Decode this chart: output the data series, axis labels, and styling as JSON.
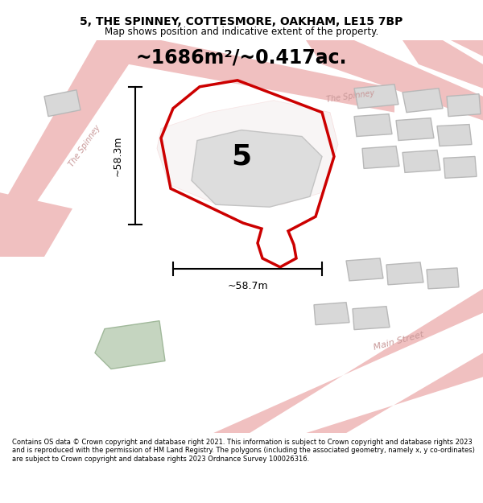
{
  "title_line1": "5, THE SPINNEY, COTTESMORE, OAKHAM, LE15 7BP",
  "title_line2": "Map shows position and indicative extent of the property.",
  "area_text": "~1686m²/~0.417ac.",
  "dim_vertical": "~58.3m",
  "dim_horizontal": "~58.7m",
  "property_number": "5",
  "footer_text": "Contains OS data © Crown copyright and database right 2021. This information is subject to Crown copyright and database rights 2023 and is reproduced with the permission of HM Land Registry. The polygons (including the associated geometry, namely x, y co-ordinates) are subject to Crown copyright and database rights 2023 Ordnance Survey 100026316.",
  "bg_color": "#f5f0f0",
  "red_color": "#cc0000",
  "light_red": "#f0c0c0",
  "building_fill": "#d8d8d8",
  "building_stroke": "#b8b8b8",
  "green_patch": "#c5d5c0",
  "road_label_color": "#c89898",
  "separator_color": "#cccccc"
}
